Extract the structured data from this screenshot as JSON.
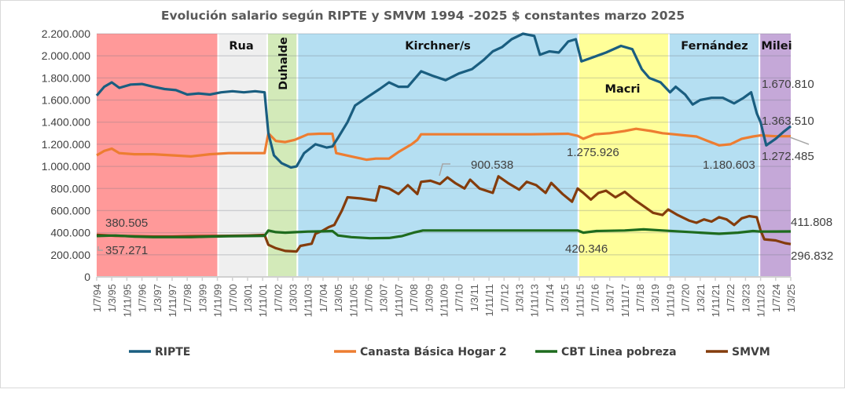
{
  "chart_data": {
    "type": "line",
    "title": "Evolución salario según RIPTE y SMVM 1994 -2025 $ constantes marzo 2025",
    "xlabel": "",
    "ylabel": "",
    "x_unit": "months since 1/7/94",
    "x_range": [
      0,
      368
    ],
    "ylim": [
      0,
      2200000
    ],
    "y_ticks": [
      0,
      200000,
      400000,
      600000,
      800000,
      1000000,
      1200000,
      1400000,
      1600000,
      1800000,
      2000000,
      2200000
    ],
    "y_tick_labels": [
      "0",
      "200.000",
      "400.000",
      "600.000",
      "800.000",
      "1.000.000",
      "1.200.000",
      "1.400.000",
      "1.600.000",
      "1.800.000",
      "2.000.000",
      "2.200.000"
    ],
    "x_tick_labels": [
      "1/7/94",
      "1/3/95",
      "1/11/95",
      "1/7/96",
      "1/3/97",
      "1/11/97",
      "1/7/98",
      "1/3/99",
      "1/11/99",
      "1/7/00",
      "1/3/01",
      "1/11/01",
      "1/7/02",
      "1/3/03",
      "1/11/03",
      "1/7/04",
      "1/3/05",
      "1/11/05",
      "1/7/06",
      "1/3/07",
      "1/11/07",
      "1/7/08",
      "1/3/09",
      "1/11/09",
      "1/7/10",
      "1/3/11",
      "1/11/11",
      "1/7/12",
      "1/3/13",
      "1/11/13",
      "1/7/14",
      "1/3/15",
      "1/11/15",
      "1/7/16",
      "1/3/17",
      "1/11/17",
      "1/7/18",
      "1/3/19",
      "1/11/19",
      "1/7/20",
      "1/3/21",
      "1/11/21",
      "1/7/22",
      "1/3/23",
      "1/11/23",
      "1/7/24",
      "1/3/25"
    ],
    "grid": true,
    "legend_position": "bottom",
    "periods": [
      {
        "name": "",
        "start": 0,
        "end": 64,
        "color": "#ff9999"
      },
      {
        "name": "Rua",
        "start": 65,
        "end": 90,
        "color": "#efefef"
      },
      {
        "name": "Duhalde",
        "start": 91,
        "end": 106,
        "color": "#d3eab9"
      },
      {
        "name": "Kirchner/s",
        "start": 107,
        "end": 255,
        "color": "#b5dff2"
      },
      {
        "name": "Macri",
        "start": 256,
        "end": 303,
        "color": "#ffff99"
      },
      {
        "name": "Fernández",
        "start": 304,
        "end": 351,
        "color": "#b5dff2"
      },
      {
        "name": "Milei",
        "start": 352,
        "end": 368,
        "color": "#c5a8d8"
      }
    ],
    "series": [
      {
        "name": "RIPTE",
        "color": "#1a5e80",
        "points": [
          [
            0,
            1640000
          ],
          [
            4,
            1720000
          ],
          [
            8,
            1760000
          ],
          [
            12,
            1710000
          ],
          [
            18,
            1740000
          ],
          [
            24,
            1745000
          ],
          [
            30,
            1720000
          ],
          [
            36,
            1700000
          ],
          [
            42,
            1690000
          ],
          [
            48,
            1650000
          ],
          [
            54,
            1660000
          ],
          [
            60,
            1650000
          ],
          [
            66,
            1670000
          ],
          [
            72,
            1680000
          ],
          [
            78,
            1670000
          ],
          [
            84,
            1680000
          ],
          [
            89,
            1670000
          ],
          [
            91,
            1300000
          ],
          [
            94,
            1100000
          ],
          [
            98,
            1030000
          ],
          [
            103,
            990000
          ],
          [
            106,
            1000000
          ],
          [
            110,
            1120000
          ],
          [
            116,
            1200000
          ],
          [
            122,
            1170000
          ],
          [
            125,
            1180000
          ],
          [
            128,
            1260000
          ],
          [
            133,
            1400000
          ],
          [
            137,
            1550000
          ],
          [
            143,
            1620000
          ],
          [
            150,
            1700000
          ],
          [
            155,
            1760000
          ],
          [
            160,
            1720000
          ],
          [
            165,
            1720000
          ],
          [
            172,
            1860000
          ],
          [
            178,
            1820000
          ],
          [
            185,
            1780000
          ],
          [
            192,
            1840000
          ],
          [
            199,
            1880000
          ],
          [
            205,
            1960000
          ],
          [
            210,
            2040000
          ],
          [
            215,
            2080000
          ],
          [
            220,
            2150000
          ],
          [
            226,
            2200000
          ],
          [
            232,
            2180000
          ],
          [
            235,
            2010000
          ],
          [
            240,
            2040000
          ],
          [
            245,
            2030000
          ],
          [
            250,
            2130000
          ],
          [
            254,
            2150000
          ],
          [
            257,
            1950000
          ],
          [
            262,
            1980000
          ],
          [
            270,
            2030000
          ],
          [
            278,
            2090000
          ],
          [
            284,
            2060000
          ],
          [
            289,
            1880000
          ],
          [
            293,
            1800000
          ],
          [
            299,
            1760000
          ],
          [
            304,
            1670000
          ],
          [
            307,
            1720000
          ],
          [
            312,
            1650000
          ],
          [
            316,
            1560000
          ],
          [
            320,
            1600000
          ],
          [
            326,
            1620000
          ],
          [
            332,
            1620000
          ],
          [
            338,
            1570000
          ],
          [
            343,
            1620000
          ],
          [
            347,
            1670000
          ],
          [
            350,
            1480000
          ],
          [
            352,
            1400000
          ],
          [
            355,
            1190000
          ],
          [
            360,
            1250000
          ],
          [
            364,
            1310000
          ],
          [
            368,
            1363510
          ]
        ]
      },
      {
        "name": "Canasta Básica Hogar 2",
        "color": "#ed7d31",
        "points": [
          [
            0,
            1100000
          ],
          [
            4,
            1140000
          ],
          [
            8,
            1160000
          ],
          [
            12,
            1120000
          ],
          [
            20,
            1110000
          ],
          [
            30,
            1110000
          ],
          [
            40,
            1100000
          ],
          [
            50,
            1090000
          ],
          [
            60,
            1110000
          ],
          [
            70,
            1120000
          ],
          [
            80,
            1120000
          ],
          [
            89,
            1120000
          ],
          [
            91,
            1300000
          ],
          [
            95,
            1230000
          ],
          [
            100,
            1220000
          ],
          [
            105,
            1240000
          ],
          [
            112,
            1290000
          ],
          [
            118,
            1295000
          ],
          [
            125,
            1295000
          ],
          [
            127,
            1120000
          ],
          [
            135,
            1090000
          ],
          [
            143,
            1060000
          ],
          [
            148,
            1070000
          ],
          [
            155,
            1070000
          ],
          [
            160,
            1130000
          ],
          [
            167,
            1200000
          ],
          [
            170,
            1240000
          ],
          [
            172,
            1290000
          ],
          [
            200,
            1290000
          ],
          [
            230,
            1290000
          ],
          [
            250,
            1295000
          ],
          [
            255,
            1275926
          ],
          [
            258,
            1250000
          ],
          [
            264,
            1290000
          ],
          [
            272,
            1300000
          ],
          [
            280,
            1320000
          ],
          [
            286,
            1340000
          ],
          [
            294,
            1320000
          ],
          [
            300,
            1300000
          ],
          [
            306,
            1290000
          ],
          [
            312,
            1280000
          ],
          [
            318,
            1270000
          ],
          [
            324,
            1230000
          ],
          [
            330,
            1190000
          ],
          [
            336,
            1200000
          ],
          [
            342,
            1250000
          ],
          [
            348,
            1270000
          ],
          [
            352,
            1280000
          ],
          [
            360,
            1272485
          ],
          [
            368,
            1272485
          ]
        ]
      },
      {
        "name": "CBT Linea pobreza",
        "color": "#1e6b1e",
        "points": [
          [
            0,
            370000
          ],
          [
            10,
            375000
          ],
          [
            20,
            365000
          ],
          [
            30,
            360000
          ],
          [
            40,
            360000
          ],
          [
            50,
            360000
          ],
          [
            60,
            365000
          ],
          [
            70,
            368000
          ],
          [
            80,
            370000
          ],
          [
            89,
            372000
          ],
          [
            91,
            420000
          ],
          [
            95,
            405000
          ],
          [
            100,
            400000
          ],
          [
            106,
            405000
          ],
          [
            112,
            410000
          ],
          [
            120,
            412000
          ],
          [
            125,
            415000
          ],
          [
            128,
            375000
          ],
          [
            135,
            360000
          ],
          [
            145,
            350000
          ],
          [
            155,
            352000
          ],
          [
            162,
            370000
          ],
          [
            168,
            400000
          ],
          [
            173,
            420000
          ],
          [
            200,
            420000
          ],
          [
            230,
            420000
          ],
          [
            250,
            420000
          ],
          [
            255,
            420346
          ],
          [
            258,
            400000
          ],
          [
            265,
            415000
          ],
          [
            280,
            420000
          ],
          [
            290,
            430000
          ],
          [
            300,
            420000
          ],
          [
            310,
            410000
          ],
          [
            320,
            400000
          ],
          [
            330,
            390000
          ],
          [
            340,
            400000
          ],
          [
            348,
            415000
          ],
          [
            352,
            410000
          ],
          [
            360,
            411000
          ],
          [
            368,
            411808
          ]
        ]
      },
      {
        "name": "SMVM",
        "color": "#843c0c",
        "points": [
          [
            0,
            380505
          ],
          [
            10,
            372000
          ],
          [
            20,
            368000
          ],
          [
            30,
            365000
          ],
          [
            40,
            365000
          ],
          [
            50,
            368000
          ],
          [
            60,
            370000
          ],
          [
            70,
            372000
          ],
          [
            80,
            375000
          ],
          [
            89,
            380000
          ],
          [
            91,
            290000
          ],
          [
            95,
            260000
          ],
          [
            100,
            235000
          ],
          [
            106,
            230000
          ],
          [
            108,
            280000
          ],
          [
            114,
            300000
          ],
          [
            116,
            390000
          ],
          [
            120,
            420000
          ],
          [
            123,
            450000
          ],
          [
            126,
            470000
          ],
          [
            130,
            600000
          ],
          [
            133,
            720000
          ],
          [
            140,
            710000
          ],
          [
            148,
            690000
          ],
          [
            150,
            820000
          ],
          [
            155,
            800000
          ],
          [
            160,
            750000
          ],
          [
            165,
            830000
          ],
          [
            170,
            750000
          ],
          [
            172,
            860000
          ],
          [
            177,
            870000
          ],
          [
            182,
            840000
          ],
          [
            186,
            900538
          ],
          [
            190,
            850000
          ],
          [
            195,
            800000
          ],
          [
            198,
            880000
          ],
          [
            203,
            800000
          ],
          [
            210,
            760000
          ],
          [
            213,
            910000
          ],
          [
            218,
            850000
          ],
          [
            224,
            790000
          ],
          [
            228,
            860000
          ],
          [
            233,
            830000
          ],
          [
            238,
            760000
          ],
          [
            241,
            850000
          ],
          [
            247,
            750000
          ],
          [
            252,
            680000
          ],
          [
            255,
            800000
          ],
          [
            258,
            760000
          ],
          [
            262,
            700000
          ],
          [
            266,
            760000
          ],
          [
            270,
            780000
          ],
          [
            275,
            720000
          ],
          [
            280,
            770000
          ],
          [
            285,
            700000
          ],
          [
            290,
            640000
          ],
          [
            295,
            580000
          ],
          [
            300,
            560000
          ],
          [
            303,
            610000
          ],
          [
            308,
            560000
          ],
          [
            314,
            510000
          ],
          [
            318,
            490000
          ],
          [
            322,
            520000
          ],
          [
            326,
            500000
          ],
          [
            330,
            540000
          ],
          [
            334,
            520000
          ],
          [
            338,
            470000
          ],
          [
            342,
            530000
          ],
          [
            346,
            550000
          ],
          [
            350,
            540000
          ],
          [
            352,
            420000
          ],
          [
            354,
            340000
          ],
          [
            360,
            330000
          ],
          [
            365,
            305000
          ],
          [
            368,
            296832
          ]
        ]
      }
    ],
    "annotations": [
      {
        "text": "380.505",
        "series": "SMVM"
      },
      {
        "text": "357.271",
        "series": "CBT Linea pobreza"
      },
      {
        "text": "900.538",
        "series": "SMVM"
      },
      {
        "text": "1.275.926",
        "series": "Canasta Básica Hogar 2"
      },
      {
        "text": "420.346",
        "series": "CBT Linea pobreza"
      },
      {
        "text": "1.180.603",
        "series": "Canasta Básica Hogar 2"
      },
      {
        "text": "1.670.810",
        "series": "RIPTE"
      },
      {
        "text": "1.363.510",
        "series": "RIPTE"
      },
      {
        "text": "1.272.485",
        "series": "Canasta Básica Hogar 2"
      },
      {
        "text": "411.808",
        "series": "CBT Linea pobreza"
      },
      {
        "text": "296.832",
        "series": "SMVM"
      }
    ]
  }
}
